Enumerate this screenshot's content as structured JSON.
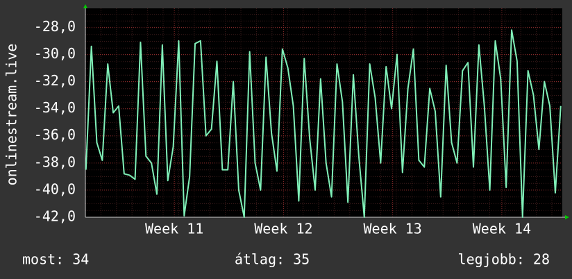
{
  "chart_data": {
    "type": "line",
    "y_label": "onlinestream.live",
    "x": [
      10.19,
      10.24,
      10.29,
      10.34,
      10.39,
      10.44,
      10.49,
      10.54,
      10.59,
      10.64,
      10.69,
      10.74,
      10.79,
      10.84,
      10.89,
      10.94,
      10.99,
      11.04,
      11.09,
      11.14,
      11.19,
      11.24,
      11.29,
      11.34,
      11.39,
      11.44,
      11.49,
      11.54,
      11.59,
      11.64,
      11.69,
      11.74,
      11.79,
      11.84,
      11.89,
      11.94,
      11.99,
      12.04,
      12.09,
      12.14,
      12.19,
      12.24,
      12.29,
      12.34,
      12.39,
      12.44,
      12.49,
      12.54,
      12.59,
      12.64,
      12.69,
      12.74,
      12.79,
      12.84,
      12.89,
      12.94,
      12.99,
      13.04,
      13.09,
      13.14,
      13.19,
      13.24,
      13.29,
      13.34,
      13.39,
      13.44,
      13.49,
      13.54,
      13.59,
      13.64,
      13.69,
      13.74,
      13.79,
      13.84,
      13.89,
      13.94,
      13.99,
      14.04,
      14.09,
      14.14,
      14.19,
      14.24,
      14.29,
      14.34,
      14.39,
      14.44,
      14.49,
      14.54
    ],
    "series": [
      {
        "color": "#80f0b8",
        "values": [
          -38.5,
          -29.4,
          -36.5,
          -37.8,
          -30.7,
          -34.3,
          -33.8,
          -38.8,
          -38.9,
          -39.2,
          -29.1,
          -37.5,
          -38.0,
          -40.3,
          -29.3,
          -39.3,
          -36.8,
          -29.0,
          -41.9,
          -39.0,
          -29.2,
          -29.0,
          -36.0,
          -35.5,
          -30.5,
          -38.5,
          -38.5,
          -32.0,
          -40.0,
          -42.0,
          -29.8,
          -38.0,
          -40.0,
          -30.2,
          -35.8,
          -38.6,
          -29.6,
          -31.0,
          -33.8,
          -40.8,
          -30.3,
          -36.2,
          -40.0,
          -31.8,
          -38.0,
          -40.5,
          -30.7,
          -33.5,
          -40.9,
          -31.5,
          -37.5,
          -42.0,
          -30.7,
          -33.2,
          -38.0,
          -30.9,
          -34.0,
          -30.0,
          -38.7,
          -32.5,
          -29.6,
          -37.8,
          -38.3,
          -32.5,
          -34.2,
          -40.5,
          -30.8,
          -36.5,
          -38.0,
          -31.2,
          -30.6,
          -38.3,
          -29.3,
          -33.8,
          -40.0,
          -29.0,
          -31.8,
          -39.8,
          -28.2,
          -30.5,
          -42.0,
          -31.2,
          -33.0,
          -37.0,
          -32.0,
          -33.8,
          -40.2,
          -33.8
        ]
      }
    ],
    "xlim": [
      10.185,
      14.554
    ],
    "xticks": [
      {
        "value": 11,
        "label": "Week 11"
      },
      {
        "value": 12,
        "label": "Week 12"
      },
      {
        "value": 13,
        "label": "Week 13"
      },
      {
        "value": 14,
        "label": "Week 14"
      }
    ],
    "ylim": [
      -42,
      -26.6
    ],
    "yticks": [
      {
        "value": -42,
        "label": "-42,0"
      },
      {
        "value": -40,
        "label": "-40,0"
      },
      {
        "value": -38,
        "label": "-38,0"
      },
      {
        "value": -36,
        "label": "-36,0"
      },
      {
        "value": -34,
        "label": "-34,0"
      },
      {
        "value": -32,
        "label": "-32,0"
      },
      {
        "value": -30,
        "label": "-30,0"
      },
      {
        "value": -28,
        "label": "-28,0"
      }
    ],
    "grid": true,
    "annotations": [
      "most: 34",
      "átlag: 35",
      "legjobb: 28"
    ]
  }
}
